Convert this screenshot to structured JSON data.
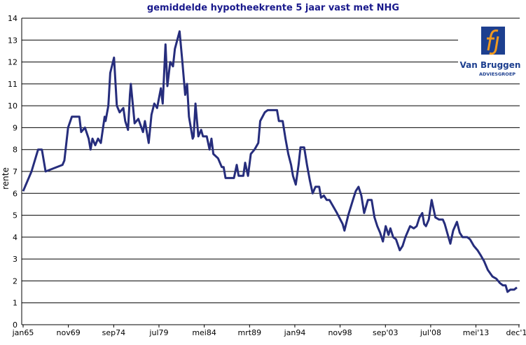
{
  "chart_data": {
    "type": "line",
    "title": "gemiddelde hypotheekrente 5 jaar vast met NHG",
    "y_label": "rente",
    "logo_text": [
      "Van Bruggen",
      "ADVIESGROEP"
    ],
    "xlim": [
      1964.85,
      2018.0
    ],
    "xticks": [
      {
        "value": 1965.0,
        "label": "jan65"
      },
      {
        "value": 1969.83,
        "label": "nov69"
      },
      {
        "value": 1974.67,
        "label": "sep74"
      },
      {
        "value": 1979.5,
        "label": "jul79"
      },
      {
        "value": 1984.33,
        "label": "mei84"
      },
      {
        "value": 1989.17,
        "label": "mrt89"
      },
      {
        "value": 1994.0,
        "label": "jan94"
      },
      {
        "value": 1998.83,
        "label": "nov98"
      },
      {
        "value": 2003.67,
        "label": "sep'03"
      },
      {
        "value": 2008.5,
        "label": "jul'08"
      },
      {
        "value": 2013.33,
        "label": "mei'13"
      },
      {
        "value": 2017.92,
        "label": "dec'17"
      }
    ],
    "ylim": [
      0,
      14
    ],
    "yticks": [
      0,
      1,
      2,
      3,
      4,
      5,
      6,
      7,
      8,
      9,
      10,
      11,
      12,
      13,
      14
    ],
    "grid": true,
    "series": [
      {
        "color": "#262d7c",
        "x": [
          1965.0,
          1965.9,
          1966.6,
          1967.0,
          1967.4,
          1969.2,
          1969.4,
          1969.8,
          1970.2,
          1971.0,
          1971.2,
          1971.6,
          1972.0,
          1972.2,
          1972.4,
          1972.7,
          1973.0,
          1973.3,
          1973.7,
          1973.8,
          1974.1,
          1974.3,
          1974.7,
          1975.0,
          1975.3,
          1975.7,
          1975.9,
          1976.2,
          1976.4,
          1976.5,
          1976.9,
          1977.3,
          1977.8,
          1978.0,
          1978.4,
          1978.7,
          1979.0,
          1979.3,
          1979.7,
          1979.9,
          1980.2,
          1980.4,
          1980.7,
          1981.0,
          1981.2,
          1981.7,
          1982.0,
          1982.3,
          1982.5,
          1982.7,
          1983.1,
          1983.2,
          1983.4,
          1983.7,
          1984.0,
          1984.2,
          1984.6,
          1984.9,
          1985.1,
          1985.3,
          1985.8,
          1986.2,
          1986.4,
          1986.6,
          1987.5,
          1987.8,
          1988.0,
          1988.5,
          1988.7,
          1989.0,
          1989.3,
          1989.7,
          1990.1,
          1990.3,
          1990.8,
          1991.1,
          1992.1,
          1992.3,
          1992.7,
          1993.0,
          1993.3,
          1993.6,
          1993.8,
          1994.1,
          1994.4,
          1994.6,
          1995.0,
          1995.3,
          1995.6,
          1995.9,
          1996.2,
          1996.6,
          1996.8,
          1997.1,
          1997.4,
          1997.7,
          1998.1,
          1998.5,
          1999.1,
          1999.3,
          1999.7,
          2000.2,
          2000.5,
          2000.8,
          2001.1,
          2001.4,
          2001.8,
          2002.2,
          2002.5,
          2002.8,
          2003.1,
          2003.4,
          2003.7,
          2004.0,
          2004.2,
          2004.5,
          2004.8,
          2005.2,
          2005.5,
          2005.8,
          2006.3,
          2006.7,
          2007.0,
          2007.3,
          2007.6,
          2007.8,
          2008.0,
          2008.3,
          2008.6,
          2008.7,
          2009.0,
          2009.4,
          2009.8,
          2010.0,
          2010.4,
          2010.6,
          2010.9,
          2011.3,
          2011.6,
          2011.9,
          2012.4,
          2012.7,
          2013.1,
          2013.5,
          2013.8,
          2014.2,
          2014.6,
          2015.1,
          2015.5,
          2015.9,
          2016.2,
          2016.5,
          2016.7,
          2017.0,
          2017.4,
          2017.7
        ],
        "values": [
          6.1,
          7.0,
          8.0,
          8.0,
          7.0,
          7.3,
          7.5,
          9.0,
          9.5,
          9.5,
          8.8,
          9.0,
          8.5,
          8.0,
          8.5,
          8.2,
          8.5,
          8.3,
          9.5,
          9.3,
          10.0,
          11.5,
          12.2,
          10.0,
          9.7,
          9.9,
          9.3,
          8.9,
          10.5,
          11.0,
          9.2,
          9.4,
          8.8,
          9.3,
          8.3,
          9.6,
          10.1,
          9.9,
          10.8,
          10.1,
          12.8,
          10.9,
          12.0,
          11.8,
          12.6,
          13.4,
          12.0,
          10.5,
          11.0,
          9.5,
          8.5,
          8.6,
          10.1,
          8.6,
          8.9,
          8.6,
          8.6,
          8.0,
          8.5,
          7.8,
          7.6,
          7.2,
          7.2,
          6.7,
          6.7,
          7.3,
          6.8,
          6.8,
          7.4,
          6.8,
          7.8,
          8.0,
          8.3,
          9.3,
          9.7,
          9.8,
          9.8,
          9.3,
          9.3,
          8.5,
          7.8,
          7.3,
          6.8,
          6.4,
          7.3,
          8.1,
          8.1,
          7.3,
          6.6,
          6.0,
          6.3,
          6.3,
          5.8,
          5.9,
          5.7,
          5.7,
          5.4,
          5.1,
          4.6,
          4.3,
          5.0,
          5.7,
          6.1,
          6.3,
          5.9,
          5.1,
          5.7,
          5.7,
          4.9,
          4.5,
          4.2,
          3.8,
          4.5,
          4.1,
          4.4,
          4.0,
          3.9,
          3.4,
          3.6,
          4.0,
          4.5,
          4.4,
          4.5,
          4.9,
          5.1,
          4.6,
          4.5,
          4.8,
          5.7,
          5.5,
          4.9,
          4.8,
          4.8,
          4.6,
          4.0,
          3.7,
          4.3,
          4.7,
          4.2,
          4.0,
          4.0,
          3.9,
          3.6,
          3.4,
          3.2,
          2.9,
          2.5,
          2.2,
          2.1,
          1.9,
          1.8,
          1.8,
          1.5,
          1.6,
          1.6,
          1.7
        ]
      }
    ]
  }
}
